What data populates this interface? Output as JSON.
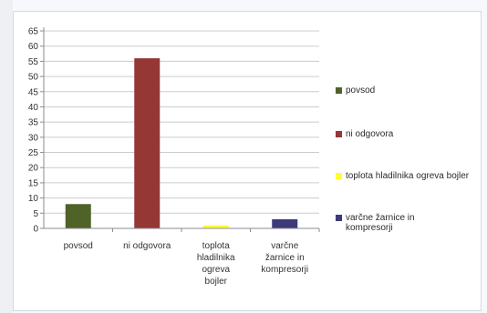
{
  "chart_data": {
    "type": "bar",
    "title": "",
    "xlabel": "",
    "ylabel": "",
    "ylim": [
      0,
      65
    ],
    "yticks": [
      0,
      5,
      10,
      15,
      20,
      25,
      30,
      35,
      40,
      45,
      50,
      55,
      60,
      65
    ],
    "grid": true,
    "legend_position": "right",
    "categories": [
      [
        "povsod"
      ],
      [
        "ni odgovora"
      ],
      [
        "toplota",
        "hladilnika",
        "ogreva",
        "bojler"
      ],
      [
        "varčne",
        "žarnice in",
        "kompresorji"
      ]
    ],
    "values": [
      8,
      56,
      1,
      3
    ],
    "colors": [
      "#4f6228",
      "#953735",
      "#ffff33",
      "#3d3a7a"
    ],
    "legend": [
      {
        "label": "povsod",
        "color": "#4f6228"
      },
      {
        "label": "ni odgovora",
        "color": "#953735"
      },
      {
        "label": "toplota hladilnika ogreva bojler",
        "color": "#ffff33"
      },
      {
        "label": "varčne žarnice in kompresorji",
        "color": "#3d3a7a"
      }
    ]
  }
}
